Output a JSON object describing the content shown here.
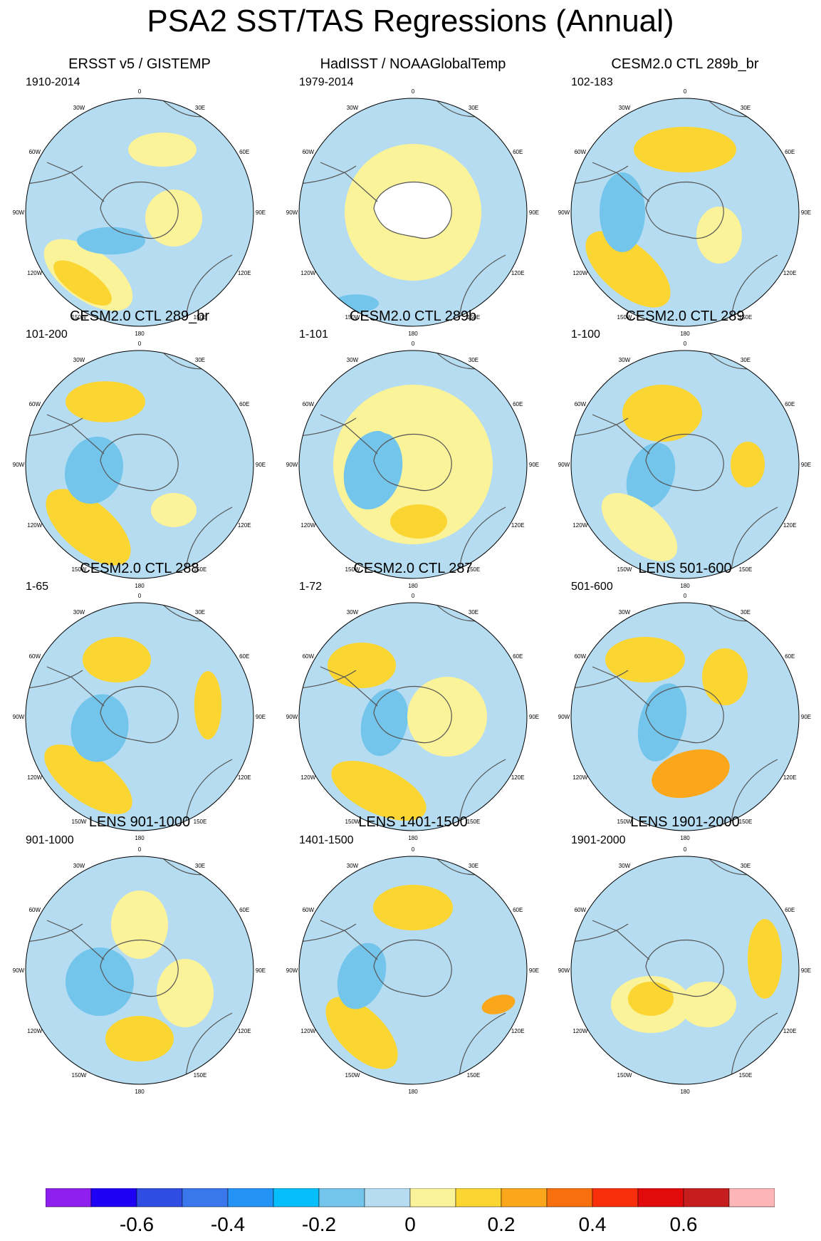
{
  "title": "PSA2 SST/TAS Regressions (Annual)",
  "colors": {
    "ocean_light_blue": "#b5dcf0",
    "ocean_blue": "#73c5ec",
    "pale_yellow": "#fbf39a",
    "yellow": "#fbd531",
    "orange": "#faa71c",
    "land_missing": "#ffffff",
    "coast": "#555555"
  },
  "longitude_labels": [
    "0",
    "30E",
    "60E",
    "90E",
    "120E",
    "150E",
    "180",
    "150W",
    "120W",
    "90W",
    "60W",
    "30W"
  ],
  "chart_data": {
    "type": "heatmap",
    "title": "PSA2 SST/TAS Regressions (Annual)",
    "projection": "south-polar-stereographic",
    "panels": [
      {
        "title": "ERSST v5 / GISTEMP",
        "period": "1910-2014"
      },
      {
        "title": "HadISST / NOAAGlobalTemp",
        "period": "1979-2014"
      },
      {
        "title": "CESM2.0 CTL 289b_br",
        "period": "102-183"
      },
      {
        "title": "CESM2.0 CTL 289_br",
        "period": "101-200"
      },
      {
        "title": "CESM2.0 CTL 289b",
        "period": "1-101"
      },
      {
        "title": "CESM2.0 CTL 289",
        "period": "1-100"
      },
      {
        "title": "CESM2.0 CTL 288",
        "period": "1-65"
      },
      {
        "title": "CESM2.0 CTL 287",
        "period": "1-72"
      },
      {
        "title": "LENS 501-600",
        "period": "501-600"
      },
      {
        "title": "LENS 901-1000",
        "period": "901-1000"
      },
      {
        "title": "LENS 1401-1500",
        "period": "1401-1500"
      },
      {
        "title": "LENS 1901-2000",
        "period": "1901-2000"
      }
    ],
    "colorbar": {
      "labels": [
        "-0.6",
        "-0.4",
        "-0.2",
        "0",
        "0.2",
        "0.4",
        "0.6"
      ],
      "colors": [
        "#8e1fee",
        "#1e00f4",
        "#2f4de3",
        "#3a77ec",
        "#2394f5",
        "#05befc",
        "#73c5ec",
        "#b5dcf0",
        "#fbf39a",
        "#fbd531",
        "#faa71c",
        "#f86f0e",
        "#f92f0c",
        "#e20b0b",
        "#c61d1e",
        "#fdb6b5"
      ]
    }
  }
}
